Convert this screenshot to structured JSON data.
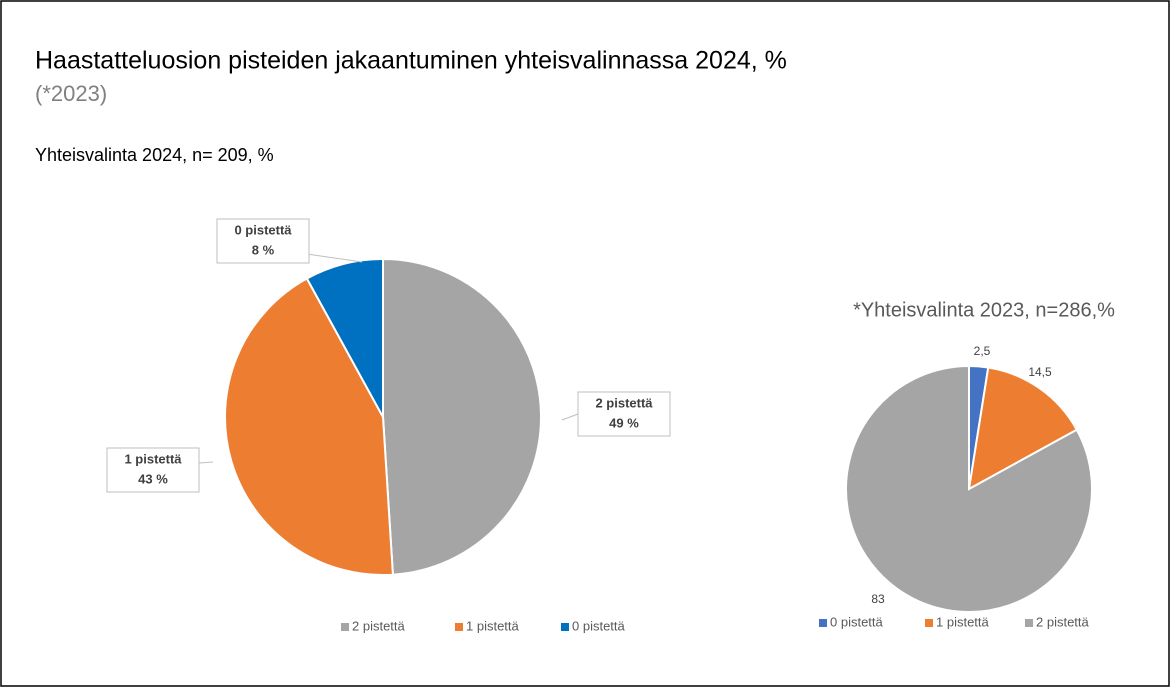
{
  "header": {
    "title": "Haastatteluosion pisteiden jakaantuminen yhteisvalinnassa 2024, %",
    "subtitle": "(*2023)"
  },
  "chart_data": [
    {
      "type": "pie",
      "title": "Yhteisvalinta 2024, n= 209, %",
      "categories": [
        "2 pistettä",
        "1 pistettä",
        "0 pistettä"
      ],
      "values": [
        49,
        43,
        8
      ],
      "value_labels": [
        "49 %",
        "43 %",
        "8 %"
      ],
      "colors": [
        "#a5a5a5",
        "#ed7d31",
        "#0070c0"
      ],
      "legend": "bottom"
    },
    {
      "type": "pie",
      "title": "*Yhteisvalinta 2023, n=286,%",
      "categories": [
        "0 pistettä",
        "1 pistettä",
        "2 pistettä"
      ],
      "values": [
        2.5,
        14.5,
        83
      ],
      "value_labels": [
        "2,5",
        "14,5",
        "83"
      ],
      "colors": [
        "#4472c4",
        "#ed7d31",
        "#a5a5a5"
      ],
      "legend": "bottom"
    }
  ]
}
